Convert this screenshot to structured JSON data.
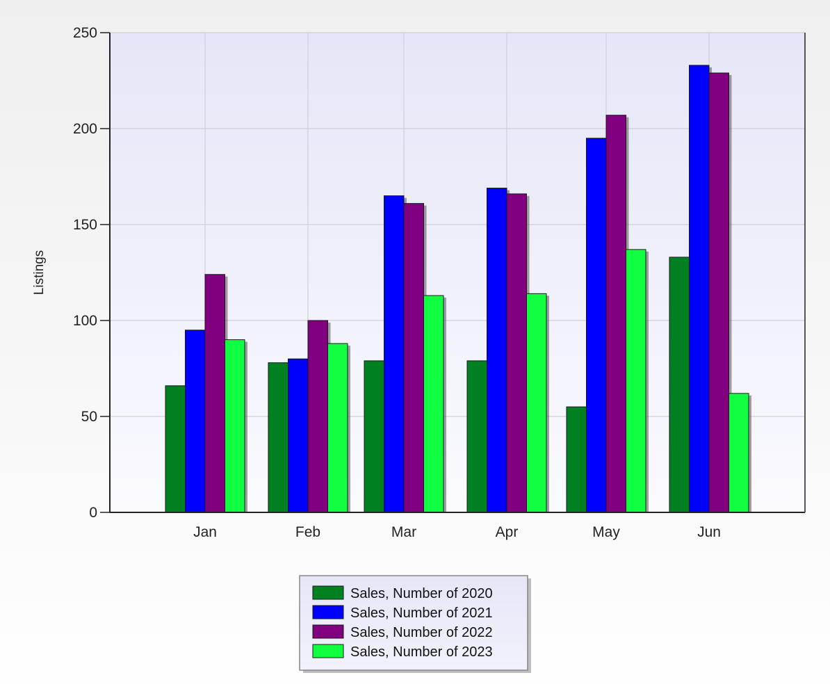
{
  "chart_data": {
    "type": "bar",
    "ylabel": "Listings",
    "ylim": [
      0,
      250
    ],
    "yticks": [
      0,
      50,
      100,
      150,
      200,
      250
    ],
    "grid": true,
    "legend_position": "bottom-center",
    "categories": [
      "Jan",
      "Feb",
      "Mar",
      "Apr",
      "May",
      "Jun"
    ],
    "series": [
      {
        "name": "Sales, Number of 2020",
        "color": "#008020",
        "values": [
          66,
          78,
          79,
          79,
          55,
          133
        ]
      },
      {
        "name": "Sales, Number of 2021",
        "color": "#0000ff",
        "values": [
          95,
          80,
          165,
          169,
          195,
          233
        ]
      },
      {
        "name": "Sales, Number of 2022",
        "color": "#800080",
        "values": [
          124,
          100,
          161,
          166,
          207,
          229
        ]
      },
      {
        "name": "Sales, Number of 2023",
        "color": "#10ff40",
        "values": [
          90,
          88,
          113,
          114,
          137,
          62
        ]
      }
    ]
  }
}
